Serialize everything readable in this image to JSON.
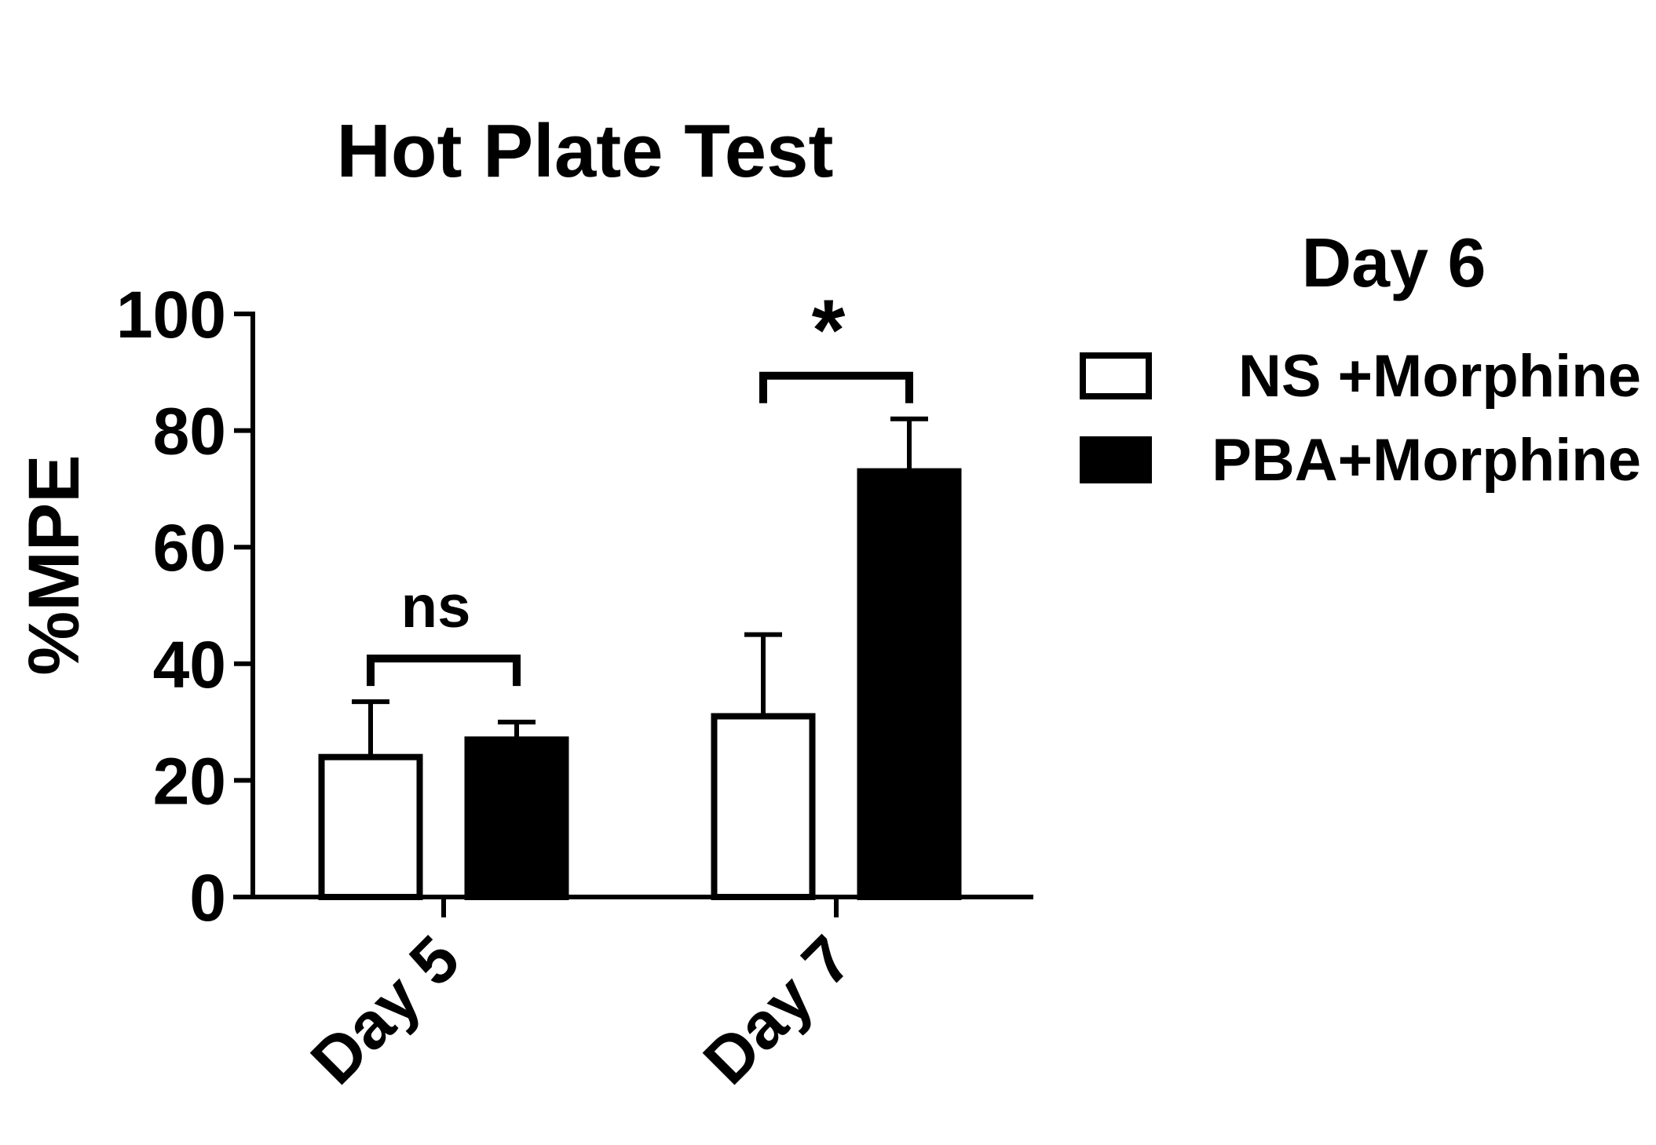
{
  "chart_data": {
    "type": "bar",
    "title": "Hot Plate Test",
    "ylabel": "%MPE",
    "xlabel": "",
    "ylim": [
      0,
      100
    ],
    "yticks": [
      0,
      20,
      40,
      60,
      80,
      100
    ],
    "categories": [
      "Day 5",
      "Day 7"
    ],
    "legend": {
      "title": "Day 6",
      "placement": "right"
    },
    "series": [
      {
        "name": "NS  +Morphine",
        "fill": "#ffffff",
        "values": [
          24,
          31
        ],
        "errors": [
          9.5,
          14
        ]
      },
      {
        "name": "PBA+Morphine",
        "fill": "#000000",
        "values": [
          27,
          73
        ],
        "errors": [
          3,
          9
        ]
      }
    ],
    "annotations": [
      {
        "category": "Day 5",
        "label": "ns"
      },
      {
        "category": "Day 7",
        "label": "*"
      }
    ]
  }
}
